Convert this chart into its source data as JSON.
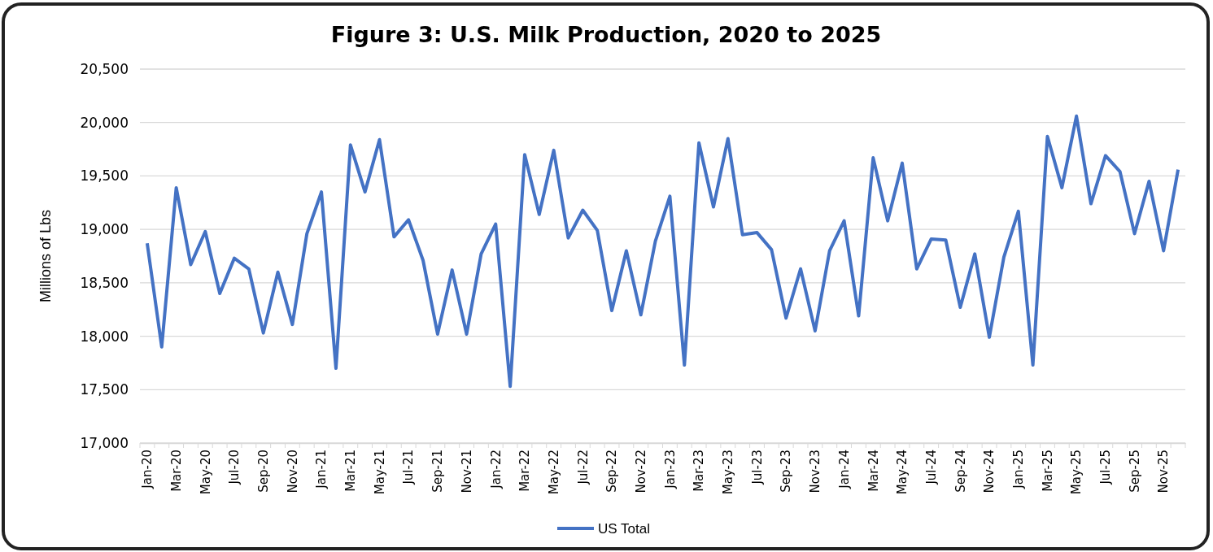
{
  "chart_data": {
    "type": "line",
    "title": "Figure 3: U.S. Milk Production, 2020 to 2025",
    "ylabel": "Millions of Lbs",
    "categories": [
      "Jan-20",
      null,
      "Mar-20",
      null,
      "May-20",
      null,
      "Jul-20",
      null,
      "Sep-20",
      null,
      "Nov-20",
      null,
      "Jan-21",
      null,
      "Mar-21",
      null,
      "May-21",
      null,
      "Jul-21",
      null,
      "Sep-21",
      null,
      "Nov-21",
      null,
      "Jan-22",
      null,
      "Mar-22",
      null,
      "May-22",
      null,
      "Jul-22",
      null,
      "Sep-22",
      null,
      "Nov-22",
      null,
      "Jan-23",
      null,
      "Mar-23",
      null,
      "May-23",
      null,
      "Jul-23",
      null,
      "Sep-23",
      null,
      "Nov-23",
      null,
      "Jan-24",
      null,
      "Mar-24",
      null,
      "May-24",
      null,
      "Jul-24",
      null,
      "Sep-24",
      null,
      "Nov-24",
      null,
      "Jan-25",
      null,
      "Mar-25",
      null,
      "May-25",
      null,
      "Jul-25",
      null,
      "Sep-25",
      null,
      "Nov-25",
      null
    ],
    "series": [
      {
        "name": "US Total",
        "color": "#4472c4",
        "values": [
          18870,
          17900,
          19390,
          18670,
          18980,
          18400,
          18730,
          18630,
          18030,
          18600,
          18110,
          18960,
          19350,
          17700,
          19790,
          19350,
          19840,
          18930,
          19090,
          18710,
          18020,
          18620,
          18020,
          18770,
          19050,
          17530,
          19700,
          19140,
          19740,
          18920,
          19180,
          18990,
          18240,
          18800,
          18200,
          18890,
          19310,
          17730,
          19810,
          19210,
          19850,
          18950,
          18970,
          18810,
          18170,
          18630,
          18050,
          18800,
          19080,
          18190,
          19670,
          19080,
          19620,
          18630,
          18910,
          18900,
          18270,
          18770,
          17990,
          18740,
          19170,
          17730,
          19870,
          19390,
          20060,
          19240,
          19690,
          19540,
          18960,
          19450,
          18800,
          19560
        ]
      }
    ],
    "ylim": [
      17000,
      20500
    ],
    "yticks": [
      {
        "value": 17000,
        "label": "17,000"
      },
      {
        "value": 17500,
        "label": "17,500"
      },
      {
        "value": 18000,
        "label": "18,000"
      },
      {
        "value": 18500,
        "label": "18,500"
      },
      {
        "value": 19000,
        "label": "19,000"
      },
      {
        "value": 19500,
        "label": "19,500"
      },
      {
        "value": 20000,
        "label": "20,000"
      },
      {
        "value": 20500,
        "label": "20,500"
      }
    ],
    "grid": "y",
    "legend": "bottom",
    "marker": "none",
    "line_style": "solid"
  }
}
